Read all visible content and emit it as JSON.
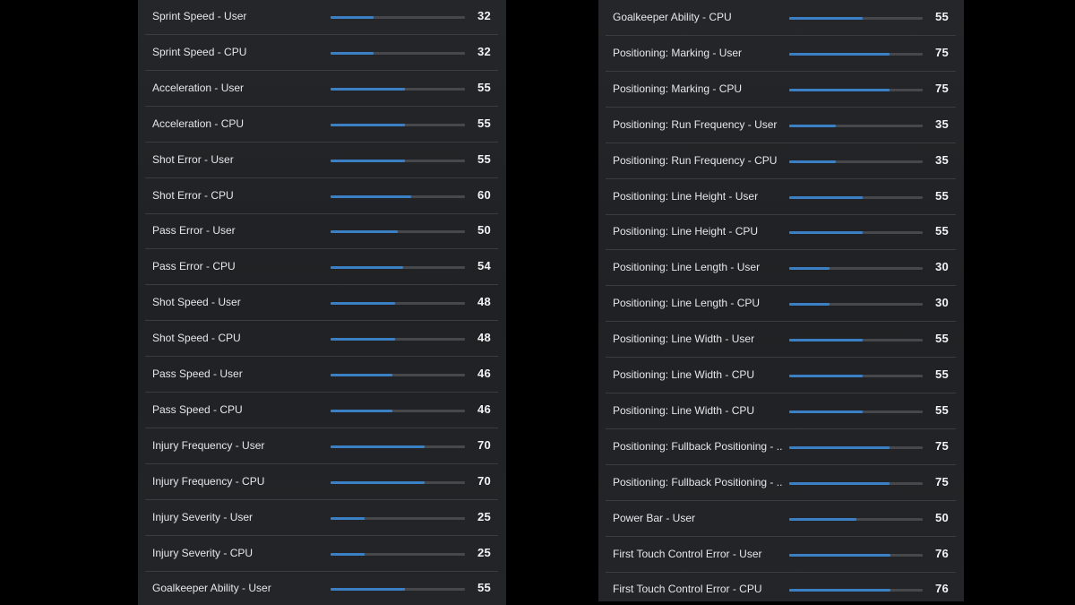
{
  "left_panel": {
    "rows": [
      {
        "label": "Sprint Speed - User",
        "value": "32",
        "fill": 0.32
      },
      {
        "label": "Sprint Speed - CPU",
        "value": "32",
        "fill": 0.32
      },
      {
        "label": "Acceleration - User",
        "value": "55",
        "fill": 0.55
      },
      {
        "label": "Acceleration - CPU",
        "value": "55",
        "fill": 0.55
      },
      {
        "label": "Shot Error - User",
        "value": "55",
        "fill": 0.55
      },
      {
        "label": "Shot Error - CPU",
        "value": "60",
        "fill": 0.6
      },
      {
        "label": "Pass Error - User",
        "value": "50",
        "fill": 0.5
      },
      {
        "label": "Pass Error - CPU",
        "value": "54",
        "fill": 0.54
      },
      {
        "label": "Shot Speed - User",
        "value": "48",
        "fill": 0.48
      },
      {
        "label": "Shot Speed - CPU",
        "value": "48",
        "fill": 0.48
      },
      {
        "label": "Pass Speed - User",
        "value": "46",
        "fill": 0.46
      },
      {
        "label": "Pass Speed - CPU",
        "value": "46",
        "fill": 0.46
      },
      {
        "label": "Injury Frequency - User",
        "value": "70",
        "fill": 0.7
      },
      {
        "label": "Injury Frequency - CPU",
        "value": "70",
        "fill": 0.7
      },
      {
        "label": "Injury Severity - User",
        "value": "25",
        "fill": 0.25
      },
      {
        "label": "Injury Severity - CPU",
        "value": "25",
        "fill": 0.25
      },
      {
        "label": "Goalkeeper Ability - User",
        "value": "55",
        "fill": 0.55
      }
    ]
  },
  "right_panel": {
    "rows": [
      {
        "label": "Goalkeeper Ability - CPU",
        "value": "55",
        "fill": 0.55
      },
      {
        "label": "Positioning: Marking - User",
        "value": "75",
        "fill": 0.75
      },
      {
        "label": "Positioning: Marking - CPU",
        "value": "75",
        "fill": 0.75
      },
      {
        "label": "Positioning: Run Frequency - User",
        "value": "35",
        "fill": 0.35
      },
      {
        "label": "Positioning: Run Frequency - CPU",
        "value": "35",
        "fill": 0.35
      },
      {
        "label": "Positioning: Line Height - User",
        "value": "55",
        "fill": 0.55
      },
      {
        "label": "Positioning: Line Height - CPU",
        "value": "55",
        "fill": 0.55
      },
      {
        "label": "Positioning: Line Length - User",
        "value": "30",
        "fill": 0.3
      },
      {
        "label": "Positioning: Line Length - CPU",
        "value": "30",
        "fill": 0.3
      },
      {
        "label": "Positioning: Line Width - User",
        "value": "55",
        "fill": 0.55
      },
      {
        "label": "Positioning: Line Width - CPU",
        "value": "55",
        "fill": 0.55
      },
      {
        "label": "Positioning: Line Width - CPU",
        "value": "55",
        "fill": 0.55
      },
      {
        "label": "Positioning: Fullback Positioning - ...",
        "value": "75",
        "fill": 0.75
      },
      {
        "label": "Positioning: Fullback Positioning - ...",
        "value": "75",
        "fill": 0.75
      },
      {
        "label": "Power Bar - User",
        "value": "50",
        "fill": 0.5
      },
      {
        "label": "First Touch Control Error - User",
        "value": "76",
        "fill": 0.76
      },
      {
        "label": "First Touch Control Error - CPU",
        "value": "76",
        "fill": 0.76
      }
    ]
  },
  "colors": {
    "fill": "#3b7fc4",
    "track": "#46484c",
    "panel": "#222427",
    "background": "#000000"
  }
}
